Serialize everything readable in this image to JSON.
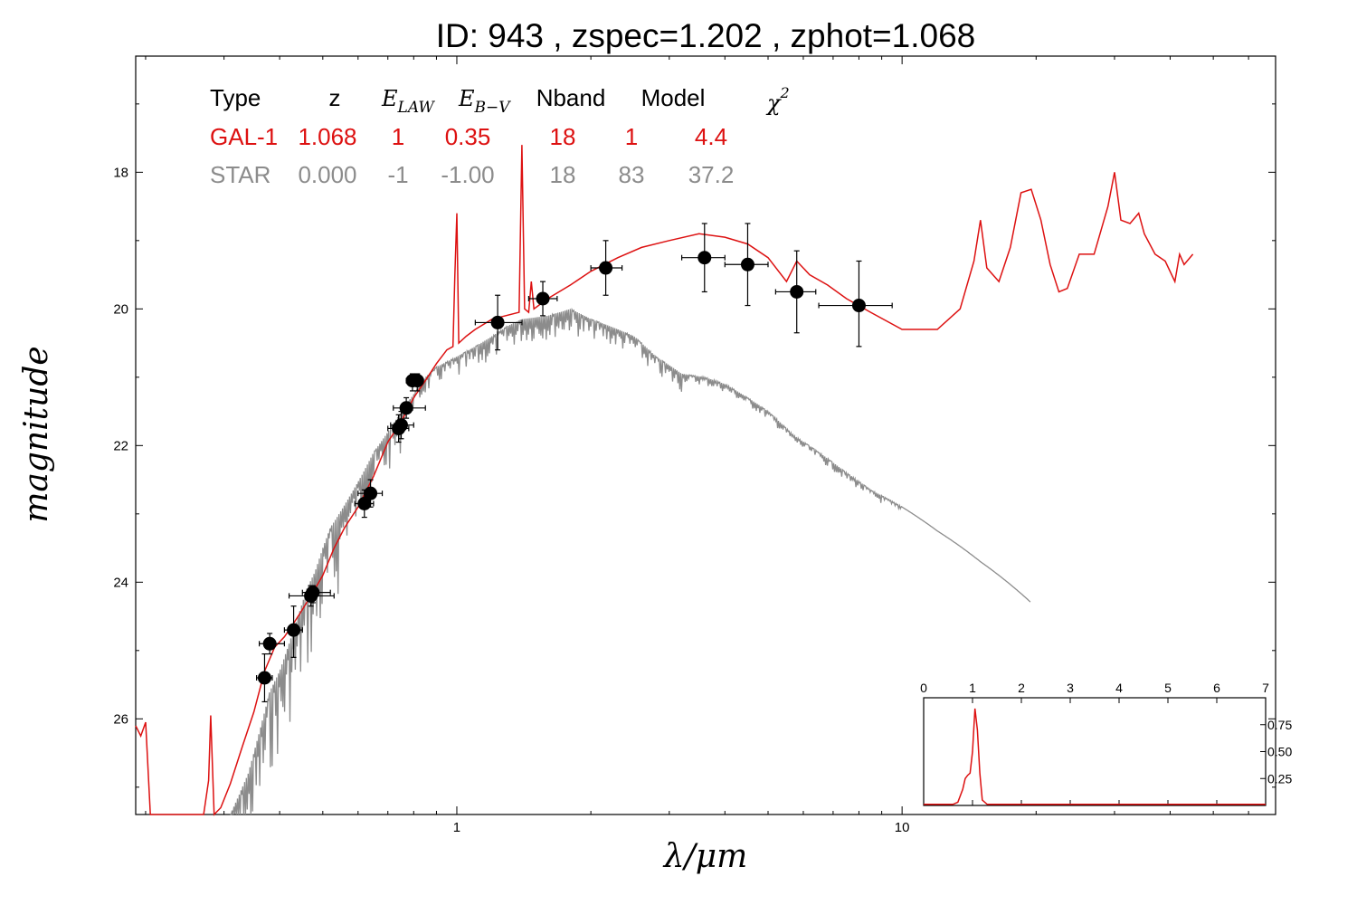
{
  "title": "ID:  943   , zspec=1.202 , zphot=1.068",
  "colors": {
    "galaxy": "#dd1111",
    "star": "#8c8c8c",
    "points": "#000000"
  },
  "table": {
    "headers": [
      "Type",
      "z",
      "E",
      "LAW",
      "E",
      "B−V",
      "Nband",
      "Model",
      "χ",
      "2"
    ],
    "rows": [
      {
        "color": "#dd1111",
        "cells": [
          "GAL-1",
          "1.068",
          "1",
          "0.35",
          "18",
          "1",
          "4.4"
        ]
      },
      {
        "color": "#8c8c8c",
        "cells": [
          "STAR",
          "0.000",
          "-1",
          "-1.00",
          "18",
          "83",
          "37.2"
        ]
      }
    ]
  },
  "chart_data": [
    {
      "type": "scatter",
      "xlabel": "λ/μm",
      "ylabel": "magnitude",
      "xscale": "log",
      "xlim": [
        0.19,
        69
      ],
      "ylim": [
        27.4,
        16.3
      ],
      "xticks": [
        1,
        10
      ],
      "xtick_labels": [
        "1",
        "10"
      ],
      "yticks": [
        18,
        20,
        22,
        24,
        26
      ],
      "ytick_labels": [
        "18",
        "20",
        "22",
        "24",
        "26"
      ],
      "photometry": [
        {
          "x": 0.37,
          "y": 25.4,
          "xerr": [
            0.355,
            0.385
          ],
          "yerr": [
            25.05,
            25.75
          ]
        },
        {
          "x": 0.38,
          "y": 24.9,
          "xerr": [
            0.36,
            0.41
          ],
          "yerr": [
            24.75,
            25.05
          ]
        },
        {
          "x": 0.43,
          "y": 24.7,
          "xerr": [
            0.41,
            0.45
          ],
          "yerr": [
            24.35,
            25.1
          ]
        },
        {
          "x": 0.47,
          "y": 24.2,
          "xerr": [
            0.42,
            0.53
          ],
          "yerr": [
            24.05,
            24.35
          ]
        },
        {
          "x": 0.475,
          "y": 24.15,
          "xerr": [
            0.45,
            0.52
          ],
          "yerr": [
            24.05,
            24.3
          ]
        },
        {
          "x": 0.62,
          "y": 22.85,
          "xerr": [
            0.59,
            0.65
          ],
          "yerr": [
            22.65,
            23.05
          ]
        },
        {
          "x": 0.64,
          "y": 22.7,
          "xerr": [
            0.6,
            0.68
          ],
          "yerr": [
            22.5,
            22.9
          ]
        },
        {
          "x": 0.74,
          "y": 21.75,
          "xerr": [
            0.7,
            0.78
          ],
          "yerr": [
            21.55,
            21.95
          ]
        },
        {
          "x": 0.75,
          "y": 21.7,
          "xerr": [
            0.71,
            0.8
          ],
          "yerr": [
            21.5,
            21.9
          ]
        },
        {
          "x": 0.77,
          "y": 21.45,
          "xerr": [
            0.72,
            0.85
          ],
          "yerr": [
            21.3,
            21.6
          ]
        },
        {
          "x": 0.795,
          "y": 21.05,
          "xerr": [
            0.77,
            0.82
          ],
          "yerr": [
            20.95,
            21.2
          ]
        },
        {
          "x": 0.815,
          "y": 21.05,
          "xerr": [
            0.79,
            0.84
          ],
          "yerr": [
            20.95,
            21.2
          ]
        },
        {
          "x": 1.235,
          "y": 20.2,
          "xerr": [
            1.1,
            1.4
          ],
          "yerr": [
            19.8,
            20.6
          ]
        },
        {
          "x": 1.56,
          "y": 19.85,
          "xerr": [
            1.45,
            1.68
          ],
          "yerr": [
            19.6,
            20.1
          ]
        },
        {
          "x": 2.16,
          "y": 19.4,
          "xerr": [
            2.0,
            2.35
          ],
          "yerr": [
            19.0,
            19.8
          ]
        },
        {
          "x": 3.6,
          "y": 19.25,
          "xerr": [
            3.2,
            4.0
          ],
          "yerr": [
            18.75,
            19.75
          ]
        },
        {
          "x": 4.5,
          "y": 19.35,
          "xerr": [
            4.0,
            5.0
          ],
          "yerr": [
            18.75,
            19.95
          ]
        },
        {
          "x": 5.8,
          "y": 19.75,
          "xerr": [
            5.2,
            6.4
          ],
          "yerr": [
            19.15,
            20.35
          ]
        },
        {
          "x": 8.0,
          "y": 19.95,
          "xerr": [
            6.5,
            9.5
          ],
          "yerr": [
            19.3,
            20.55
          ]
        }
      ],
      "galaxy_model": [
        [
          0.19,
          26.1
        ],
        [
          0.195,
          26.25
        ],
        [
          0.2,
          26.05
        ],
        [
          0.205,
          27.4
        ],
        [
          0.27,
          27.4
        ],
        [
          0.277,
          26.9
        ],
        [
          0.28,
          25.95
        ],
        [
          0.285,
          27.4
        ],
        [
          0.295,
          27.3
        ],
        [
          0.31,
          26.95
        ],
        [
          0.33,
          26.4
        ],
        [
          0.35,
          25.9
        ],
        [
          0.37,
          25.3
        ],
        [
          0.39,
          24.95
        ],
        [
          0.41,
          24.8
        ],
        [
          0.43,
          24.6
        ],
        [
          0.45,
          24.4
        ],
        [
          0.48,
          24.1
        ],
        [
          0.5,
          23.9
        ],
        [
          0.53,
          23.5
        ],
        [
          0.56,
          23.2
        ],
        [
          0.6,
          22.9
        ],
        [
          0.65,
          22.45
        ],
        [
          0.7,
          21.95
        ],
        [
          0.75,
          21.65
        ],
        [
          0.8,
          21.3
        ],
        [
          0.85,
          21.05
        ],
        [
          0.9,
          20.8
        ],
        [
          0.95,
          20.6
        ],
        [
          0.98,
          20.55
        ],
        [
          0.99,
          19.5
        ],
        [
          1.0,
          18.6
        ],
        [
          1.01,
          20.5
        ],
        [
          1.05,
          20.4
        ],
        [
          1.1,
          20.3
        ],
        [
          1.2,
          20.15
        ],
        [
          1.38,
          20.05
        ],
        [
          1.4,
          17.6
        ],
        [
          1.42,
          20.0
        ],
        [
          1.45,
          20.05
        ],
        [
          1.47,
          19.6
        ],
        [
          1.49,
          20.0
        ],
        [
          1.6,
          19.85
        ],
        [
          1.8,
          19.65
        ],
        [
          2.0,
          19.45
        ],
        [
          2.3,
          19.25
        ],
        [
          2.6,
          19.1
        ],
        [
          3.0,
          19.0
        ],
        [
          3.5,
          18.9
        ],
        [
          4.0,
          18.95
        ],
        [
          4.5,
          19.05
        ],
        [
          5.0,
          19.25
        ],
        [
          5.5,
          19.6
        ],
        [
          5.8,
          19.3
        ],
        [
          6.2,
          19.5
        ],
        [
          6.8,
          19.65
        ],
        [
          7.5,
          19.85
        ],
        [
          8.5,
          20.05
        ],
        [
          10,
          20.3
        ],
        [
          12,
          20.3
        ],
        [
          13.5,
          20.0
        ],
        [
          14.5,
          19.3
        ],
        [
          15,
          18.7
        ],
        [
          15.5,
          19.4
        ],
        [
          16.5,
          19.6
        ],
        [
          17.5,
          19.1
        ],
        [
          18.5,
          18.3
        ],
        [
          19.5,
          18.25
        ],
        [
          20.5,
          18.7
        ],
        [
          21.5,
          19.35
        ],
        [
          22.5,
          19.75
        ],
        [
          23.5,
          19.7
        ],
        [
          25,
          19.2
        ],
        [
          27,
          19.2
        ],
        [
          29,
          18.5
        ],
        [
          30,
          18.0
        ],
        [
          31,
          18.7
        ],
        [
          32.5,
          18.75
        ],
        [
          34,
          18.6
        ],
        [
          35,
          18.9
        ],
        [
          37,
          19.2
        ],
        [
          39,
          19.3
        ],
        [
          41,
          19.6
        ],
        [
          42,
          19.2
        ],
        [
          43,
          19.35
        ],
        [
          45,
          19.2
        ]
      ],
      "star_model": [
        [
          0.31,
          27.4
        ],
        [
          0.34,
          26.8
        ],
        [
          0.36,
          26.2
        ],
        [
          0.38,
          25.6
        ],
        [
          0.4,
          25.3
        ],
        [
          0.42,
          24.9
        ],
        [
          0.44,
          24.5
        ],
        [
          0.46,
          24.1
        ],
        [
          0.48,
          23.85
        ],
        [
          0.5,
          23.5
        ],
        [
          0.52,
          23.2
        ],
        [
          0.55,
          22.95
        ],
        [
          0.58,
          22.7
        ],
        [
          0.61,
          22.45
        ],
        [
          0.65,
          22.1
        ],
        [
          0.7,
          21.8
        ],
        [
          0.75,
          21.5
        ],
        [
          0.8,
          21.25
        ],
        [
          0.85,
          21.0
        ],
        [
          0.9,
          20.85
        ],
        [
          1.0,
          20.7
        ],
        [
          1.1,
          20.55
        ],
        [
          1.2,
          20.4
        ],
        [
          1.3,
          20.25
        ],
        [
          1.4,
          20.15
        ],
        [
          1.6,
          20.1
        ],
        [
          1.8,
          20.0
        ],
        [
          2.0,
          20.15
        ],
        [
          2.2,
          20.25
        ],
        [
          2.5,
          20.4
        ],
        [
          2.8,
          20.7
        ],
        [
          3.2,
          20.95
        ],
        [
          3.6,
          21.0
        ],
        [
          4.0,
          21.1
        ],
        [
          4.5,
          21.3
        ],
        [
          5.0,
          21.5
        ],
        [
          5.7,
          21.85
        ],
        [
          6.5,
          22.1
        ],
        [
          7.5,
          22.4
        ],
        [
          8.5,
          22.65
        ],
        [
          10,
          22.9
        ],
        [
          12,
          23.25
        ],
        [
          15,
          23.7
        ],
        [
          19.5,
          24.3
        ]
      ]
    },
    {
      "type": "line",
      "xlabel": "",
      "ylabel": "",
      "xlim": [
        0,
        7
      ],
      "ylim": [
        0,
        1.0
      ],
      "xticks": [
        0,
        1,
        2,
        3,
        4,
        5,
        6,
        7
      ],
      "xtick_labels": [
        "0",
        "1",
        "2",
        "3",
        "4",
        "5",
        "6",
        "7"
      ],
      "yticks": [
        0.25,
        0.5,
        0.75
      ],
      "ytick_labels": [
        "0.25",
        "0.50",
        "0.75"
      ],
      "pdz": [
        [
          0,
          0.01
        ],
        [
          0.6,
          0.01
        ],
        [
          0.7,
          0.03
        ],
        [
          0.8,
          0.15
        ],
        [
          0.85,
          0.25
        ],
        [
          0.9,
          0.28
        ],
        [
          0.95,
          0.3
        ],
        [
          1.0,
          0.5
        ],
        [
          1.05,
          0.9
        ],
        [
          1.1,
          0.7
        ],
        [
          1.15,
          0.3
        ],
        [
          1.2,
          0.05
        ],
        [
          1.3,
          0.01
        ],
        [
          7,
          0.01
        ]
      ]
    }
  ]
}
